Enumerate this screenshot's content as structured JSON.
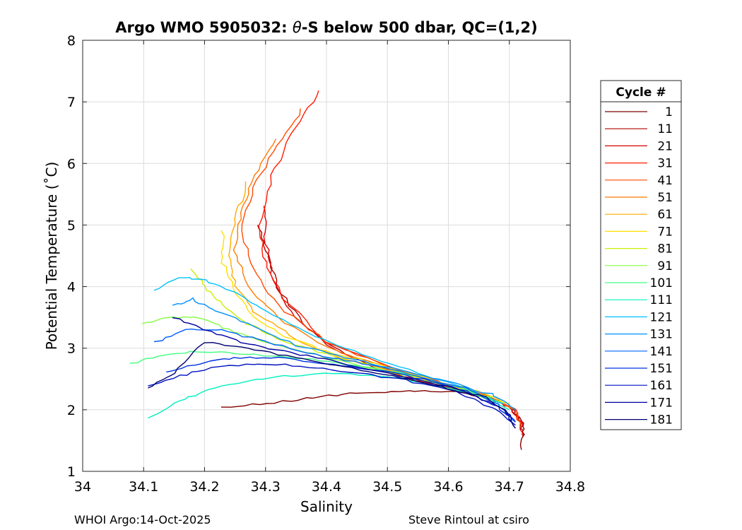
{
  "chart_data": {
    "type": "line",
    "title": "Argo WMO 5905032: θ-S below 500 dbar,  QC=(1,2)",
    "title_parts": {
      "prefix": "Argo WMO 5905032: ",
      "symbol": "θ",
      "suffix": "-S below 500 dbar,  QC=(1,2)"
    },
    "xlabel": "Salinity",
    "ylabel": "Potential Temperature (˚C)",
    "xlim": [
      34.0,
      34.8
    ],
    "ylim": [
      1,
      8
    ],
    "xticks": [
      "34",
      "34.1",
      "34.2",
      "34.3",
      "34.4",
      "34.5",
      "34.6",
      "34.7",
      "34.8"
    ],
    "yticks": [
      "1",
      "2",
      "3",
      "4",
      "5",
      "6",
      "7",
      "8"
    ],
    "grid": true,
    "legend": {
      "title": "Cycle #",
      "placement": "right outside",
      "entries": [
        {
          "label": "1",
          "color": "#800000"
        },
        {
          "label": "11",
          "color": "#b00000"
        },
        {
          "label": "21",
          "color": "#d80000"
        },
        {
          "label": "31",
          "color": "#ff1a00"
        },
        {
          "label": "41",
          "color": "#ff4a00"
        },
        {
          "label": "51",
          "color": "#ff7a00"
        },
        {
          "label": "61",
          "color": "#ffaa00"
        },
        {
          "label": "71",
          "color": "#ffe000"
        },
        {
          "label": "81",
          "color": "#c8f000"
        },
        {
          "label": "91",
          "color": "#80ff40"
        },
        {
          "label": "101",
          "color": "#40ff80"
        },
        {
          "label": "111",
          "color": "#00f0c0"
        },
        {
          "label": "121",
          "color": "#00c0ff"
        },
        {
          "label": "131",
          "color": "#0090ff"
        },
        {
          "label": "141",
          "color": "#0060ff"
        },
        {
          "label": "151",
          "color": "#0030e0"
        },
        {
          "label": "161",
          "color": "#0010c0"
        },
        {
          "label": "171",
          "color": "#0000a0"
        },
        {
          "label": "181",
          "color": "#000070"
        }
      ]
    },
    "series": [
      {
        "cycle": "1",
        "color": "#800000",
        "s": [
          34.23,
          34.3,
          34.38,
          34.45,
          34.52,
          34.6,
          34.66,
          34.7,
          34.72,
          34.722,
          34.72
        ],
        "t": [
          2.05,
          2.1,
          2.2,
          2.28,
          2.3,
          2.3,
          2.22,
          2.05,
          1.85,
          1.6,
          1.35
        ]
      },
      {
        "cycle": "11",
        "color": "#b00000",
        "s": [
          34.29,
          34.3,
          34.32,
          34.36,
          34.42,
          34.5,
          34.58,
          34.65,
          34.7,
          34.72,
          34.722
        ],
        "t": [
          5.0,
          4.6,
          4.0,
          3.4,
          2.95,
          2.6,
          2.38,
          2.25,
          2.05,
          1.8,
          1.55
        ]
      },
      {
        "cycle": "21",
        "color": "#d80000",
        "s": [
          34.3,
          34.3,
          34.31,
          34.34,
          34.4,
          34.48,
          34.57,
          34.65,
          34.7,
          34.72,
          34.72
        ],
        "t": [
          5.3,
          4.8,
          4.2,
          3.6,
          3.05,
          2.7,
          2.42,
          2.25,
          2.05,
          1.8,
          1.6
        ]
      },
      {
        "cycle": "31",
        "color": "#ff1a00",
        "s": [
          34.39,
          34.35,
          34.31,
          34.29,
          34.3,
          34.33,
          34.4,
          34.5,
          34.6,
          34.67,
          34.71,
          34.72
        ],
        "t": [
          7.2,
          6.6,
          5.8,
          5.0,
          4.4,
          3.8,
          3.1,
          2.7,
          2.4,
          2.2,
          2.0,
          1.7
        ]
      },
      {
        "cycle": "41",
        "color": "#ff4a00",
        "s": [
          34.36,
          34.32,
          34.28,
          34.26,
          34.28,
          34.32,
          34.4,
          34.5,
          34.6,
          34.67,
          34.71,
          34.72
        ],
        "t": [
          6.9,
          6.3,
          5.6,
          4.9,
          4.3,
          3.7,
          3.1,
          2.7,
          2.4,
          2.2,
          2.0,
          1.7
        ]
      },
      {
        "cycle": "51",
        "color": "#ff7a00",
        "s": [
          34.32,
          34.28,
          34.26,
          34.25,
          34.27,
          34.32,
          34.4,
          34.5,
          34.6,
          34.67,
          34.71
        ],
        "t": [
          6.4,
          5.8,
          5.2,
          4.6,
          4.0,
          3.5,
          3.0,
          2.7,
          2.4,
          2.2,
          2.0
        ]
      },
      {
        "cycle": "61",
        "color": "#ffaa00",
        "s": [
          34.27,
          34.25,
          34.24,
          34.25,
          34.28,
          34.34,
          34.42,
          34.52,
          34.62,
          34.68
        ],
        "t": [
          5.7,
          5.1,
          4.5,
          4.0,
          3.6,
          3.2,
          2.85,
          2.6,
          2.35,
          2.2
        ]
      },
      {
        "cycle": "71",
        "color": "#ffe000",
        "s": [
          34.23,
          34.23,
          34.25,
          34.28,
          34.33,
          34.4,
          34.48,
          34.57,
          34.65,
          34.7
        ],
        "t": [
          4.9,
          4.4,
          3.9,
          3.5,
          3.2,
          2.95,
          2.75,
          2.5,
          2.3,
          2.1
        ]
      },
      {
        "cycle": "81",
        "color": "#c8f000",
        "s": [
          34.18,
          34.2,
          34.23,
          34.27,
          34.32,
          34.4,
          34.5,
          34.6,
          34.67
        ],
        "t": [
          4.3,
          4.0,
          3.7,
          3.4,
          3.15,
          2.9,
          2.65,
          2.4,
          2.2
        ]
      },
      {
        "cycle": "91",
        "color": "#80ff40",
        "s": [
          34.1,
          34.14,
          34.19,
          34.24,
          34.3,
          34.38,
          34.46,
          34.55,
          34.63,
          34.69
        ],
        "t": [
          3.4,
          3.5,
          3.5,
          3.3,
          3.1,
          2.9,
          2.7,
          2.5,
          2.3,
          2.1
        ]
      },
      {
        "cycle": "101",
        "color": "#40ff80",
        "s": [
          34.08,
          34.13,
          34.2,
          34.27,
          34.35,
          34.43,
          34.52,
          34.6,
          34.67
        ],
        "t": [
          2.75,
          2.9,
          2.95,
          2.9,
          2.85,
          2.75,
          2.6,
          2.4,
          2.2
        ]
      },
      {
        "cycle": "111",
        "color": "#00f0c0",
        "s": [
          34.11,
          34.15,
          34.2,
          34.26,
          34.33,
          34.41,
          34.5,
          34.58,
          34.66,
          34.7
        ],
        "t": [
          1.85,
          2.1,
          2.3,
          2.45,
          2.55,
          2.6,
          2.55,
          2.4,
          2.22,
          2.0
        ]
      },
      {
        "cycle": "121",
        "color": "#00c0ff",
        "s": [
          34.12,
          34.16,
          34.2,
          34.25,
          34.3,
          34.38,
          34.46,
          34.55,
          34.63,
          34.69
        ],
        "t": [
          3.95,
          4.15,
          4.1,
          3.9,
          3.6,
          3.2,
          2.9,
          2.6,
          2.35,
          2.1
        ]
      },
      {
        "cycle": "131",
        "color": "#0090ff",
        "s": [
          34.15,
          34.18,
          34.22,
          34.28,
          34.35,
          34.43,
          34.52,
          34.6,
          34.67,
          34.71
        ],
        "t": [
          3.7,
          3.8,
          3.6,
          3.35,
          3.05,
          2.85,
          2.65,
          2.45,
          2.25,
          2.0
        ]
      },
      {
        "cycle": "141",
        "color": "#0060ff",
        "s": [
          34.12,
          34.17,
          34.23,
          34.3,
          34.38,
          34.46,
          34.55,
          34.63,
          34.68,
          34.71
        ],
        "t": [
          3.1,
          3.3,
          3.3,
          3.1,
          2.9,
          2.75,
          2.55,
          2.35,
          2.1,
          1.8
        ]
      },
      {
        "cycle": "151",
        "color": "#0030e0",
        "s": [
          34.14,
          34.19,
          34.25,
          34.32,
          34.4,
          34.48,
          34.56,
          34.63,
          34.68,
          34.71
        ],
        "t": [
          2.6,
          2.75,
          2.85,
          2.85,
          2.75,
          2.65,
          2.5,
          2.3,
          2.05,
          1.8
        ]
      },
      {
        "cycle": "161",
        "color": "#0010c0",
        "s": [
          34.11,
          34.16,
          34.22,
          34.29,
          34.37,
          34.45,
          34.53,
          34.61,
          34.67,
          34.71
        ],
        "t": [
          2.4,
          2.55,
          2.7,
          2.75,
          2.7,
          2.6,
          2.48,
          2.3,
          2.05,
          1.75
        ]
      },
      {
        "cycle": "171",
        "color": "#0000a0",
        "s": [
          34.15,
          34.2,
          34.26,
          34.33,
          34.41,
          34.49,
          34.57,
          34.64,
          34.69,
          34.71
        ],
        "t": [
          3.5,
          3.3,
          3.1,
          2.95,
          2.8,
          2.62,
          2.45,
          2.25,
          2.0,
          1.7
        ]
      },
      {
        "cycle": "181",
        "color": "#000070",
        "s": [
          34.11,
          34.15,
          34.2,
          34.27,
          34.35,
          34.43,
          34.51,
          34.59,
          34.66,
          34.7,
          34.71
        ],
        "t": [
          2.35,
          2.6,
          3.1,
          3.0,
          2.85,
          2.7,
          2.55,
          2.38,
          2.2,
          1.95,
          1.7
        ]
      }
    ]
  },
  "footer": {
    "left": "WHOI Argo:14-Oct-2025",
    "right": "Steve Rintoul at csiro"
  }
}
